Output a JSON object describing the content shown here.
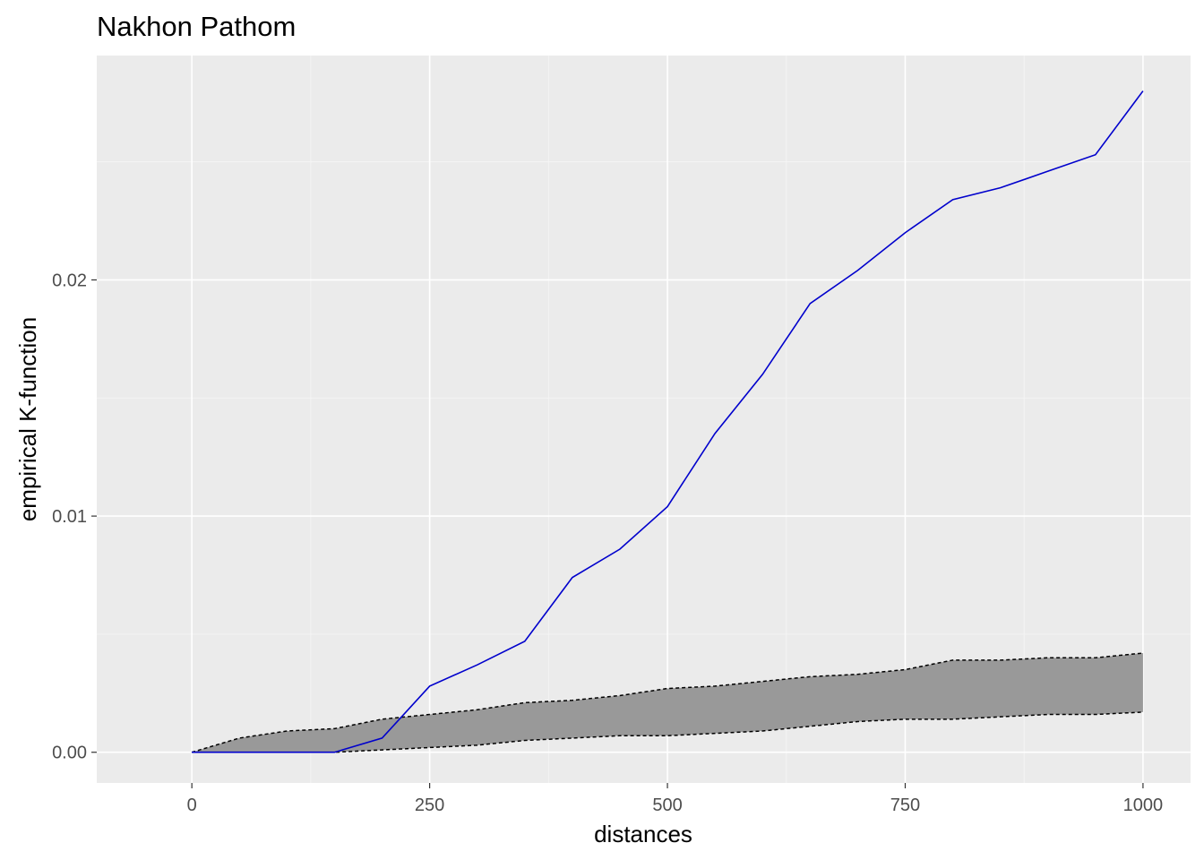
{
  "chart_data": {
    "type": "line",
    "title": "Nakhon Pathom",
    "xlabel": "distances",
    "ylabel": "empirical K-function",
    "xlim": [
      -100,
      1050
    ],
    "ylim": [
      -0.0013,
      0.0295
    ],
    "x_ticks": [
      0,
      250,
      500,
      750,
      1000
    ],
    "x_tick_labels": [
      "0",
      "250",
      "500",
      "750",
      "1000"
    ],
    "y_ticks": [
      0,
      0.01,
      0.02
    ],
    "y_tick_labels": [
      "0.00",
      "0.01",
      "0.02"
    ],
    "grid": true,
    "panel_background": "#EBEBEB",
    "x": [
      0,
      50,
      100,
      150,
      200,
      250,
      300,
      350,
      400,
      450,
      500,
      550,
      600,
      650,
      700,
      750,
      800,
      850,
      900,
      950,
      1000
    ],
    "series": [
      {
        "role": "observed",
        "color": "#0000CC",
        "style": "solid",
        "values": [
          0,
          0,
          0,
          0,
          0.0006,
          0.0028,
          0.0037,
          0.0047,
          0.0074,
          0.0086,
          0.0104,
          0.0135,
          0.016,
          0.019,
          0.0204,
          0.022,
          0.0234,
          0.0239,
          0.0246,
          0.0253,
          0.028
        ]
      },
      {
        "role": "envelope-upper",
        "color": "#000000",
        "style": "dashed",
        "values": [
          0,
          0.0006,
          0.0009,
          0.001,
          0.0014,
          0.0016,
          0.0018,
          0.0021,
          0.0022,
          0.0024,
          0.0027,
          0.0028,
          0.003,
          0.0032,
          0.0033,
          0.0035,
          0.0039,
          0.0039,
          0.004,
          0.004,
          0.0042
        ]
      },
      {
        "role": "envelope-lower",
        "color": "#000000",
        "style": "dashed",
        "values": [
          0,
          0,
          0,
          0,
          0.0001,
          0.0002,
          0.0003,
          0.0005,
          0.0006,
          0.0007,
          0.0007,
          0.0008,
          0.0009,
          0.0011,
          0.0013,
          0.0014,
          0.0014,
          0.0015,
          0.0016,
          0.0016,
          0.0017
        ]
      }
    ],
    "envelope_fill": "#999999"
  }
}
